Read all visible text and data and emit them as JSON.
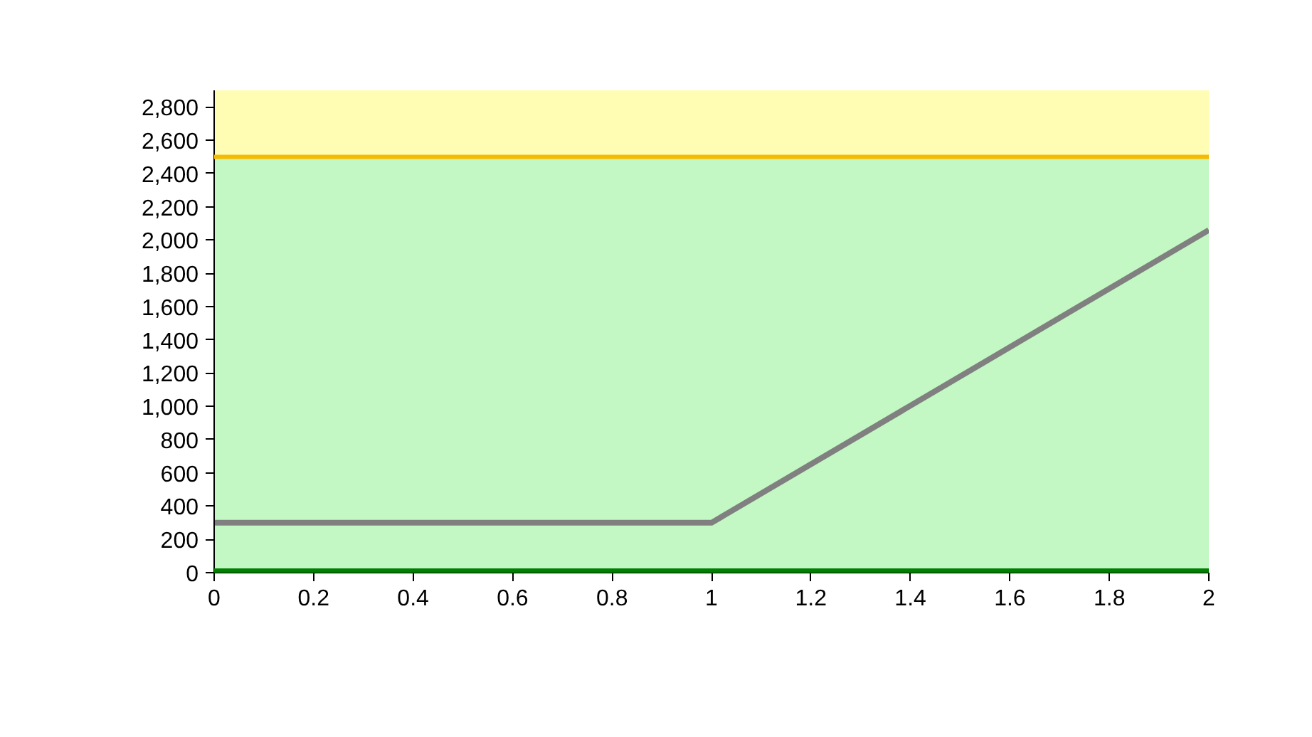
{
  "chart_data": {
    "type": "line",
    "x": [
      0,
      1,
      2
    ],
    "series": [
      {
        "color": "#808080",
        "values": [
          300,
          300,
          2060
        ]
      }
    ],
    "xlim": [
      0,
      2
    ],
    "ylim": [
      0,
      2900
    ],
    "xticks": [
      0,
      0.2,
      0.4,
      0.6,
      0.8,
      1,
      1.2,
      1.4,
      1.6,
      1.8,
      2
    ],
    "yticks": [
      0,
      {
        "value": 200,
        "label": "200"
      },
      400,
      600,
      800,
      {
        "value": 1000,
        "label": "1,000"
      },
      {
        "value": 1200,
        "label": "1,200"
      },
      {
        "value": 1400,
        "label": "1,400"
      },
      {
        "value": 1600,
        "label": "1,600"
      },
      {
        "value": 1800,
        "label": "1,800"
      },
      {
        "value": 2000,
        "label": "2,000"
      },
      {
        "value": 2200,
        "label": "2,200"
      },
      {
        "value": 2400,
        "label": "2,400"
      },
      {
        "value": 2600,
        "label": "2,600"
      },
      {
        "value": 2800,
        "label": "2,800"
      }
    ],
    "bands": [
      {
        "axis": "y",
        "from": 0,
        "to": 2500,
        "color": "#c3f7c3"
      },
      {
        "axis": "y",
        "from": 2500,
        "to": 2900,
        "color": "#fffdb3"
      }
    ],
    "ref_lines": [
      {
        "axis": "y",
        "value": 2500,
        "color": "#f5bb00"
      },
      {
        "axis": "y",
        "value": 0,
        "color": "#008000"
      }
    ],
    "marker": "none",
    "line_style": "solid"
  }
}
